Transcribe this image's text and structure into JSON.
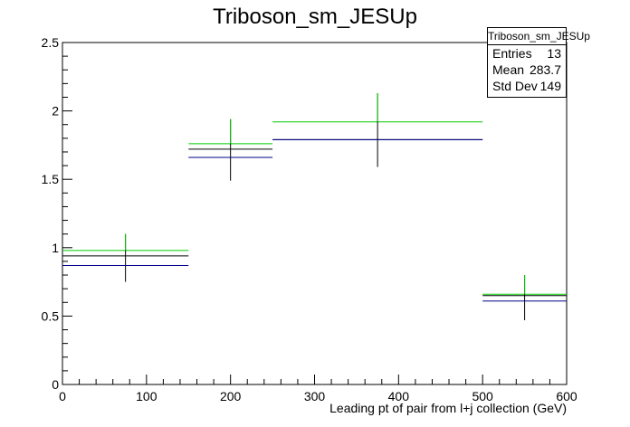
{
  "chart_data": {
    "type": "histogram",
    "title": "Triboson_sm_JESUp",
    "xlabel": "Leading pt of pair from l+j collection (GeV)",
    "ylabel": "",
    "xlim": [
      0,
      600
    ],
    "ylim": [
      0,
      2.5
    ],
    "x_ticks": [
      0,
      100,
      200,
      300,
      400,
      500,
      600
    ],
    "y_ticks": [
      0,
      0.5,
      1,
      1.5,
      2,
      2.5
    ],
    "y_tick_labels": [
      "0",
      "0.5",
      "1",
      "1.5",
      "2",
      "2.5"
    ],
    "bins": [
      [
        0,
        150
      ],
      [
        150,
        250
      ],
      [
        250,
        500
      ],
      [
        500,
        600
      ]
    ],
    "bin_centers": [
      75,
      200,
      375,
      550
    ],
    "series": [
      {
        "color": "#00cc00",
        "values": [
          0.98,
          1.76,
          1.92,
          0.66
        ]
      },
      {
        "color": "#000000",
        "values": [
          0.94,
          1.72,
          1.79,
          0.65
        ],
        "errors": [
          [
            0.75,
            1.1
          ],
          [
            1.49,
            1.94
          ],
          [
            1.59,
            2.13
          ],
          [
            0.47,
            0.8
          ]
        ]
      },
      {
        "color": "#00008b",
        "values": [
          0.87,
          1.66,
          1.79,
          0.61
        ]
      }
    ],
    "stats": {
      "title": "Triboson_sm_JESUp",
      "entries_label": "Entries",
      "entries": "13",
      "mean_label": "Mean",
      "mean": "283.7",
      "stddev_label": "Std Dev",
      "stddev": "149"
    }
  }
}
